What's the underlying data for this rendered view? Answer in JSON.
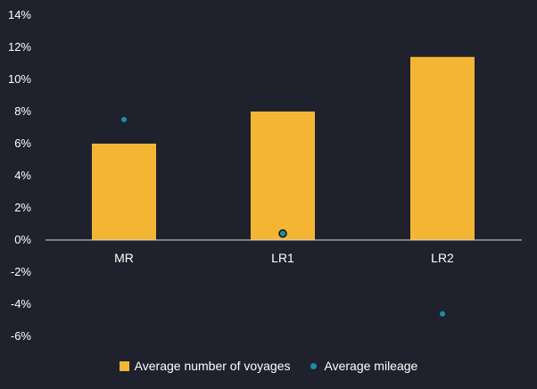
{
  "chart_data": {
    "type": "bar",
    "categories": [
      "MR",
      "LR1",
      "LR2"
    ],
    "series": [
      {
        "name": "Average number of voyages",
        "kind": "bar",
        "color": "#f4b535",
        "values": [
          6.0,
          8.0,
          11.4
        ]
      },
      {
        "name": "Average mileage",
        "kind": "scatter",
        "color": "#1a8fa6",
        "values": [
          7.5,
          0.4,
          -4.6
        ]
      }
    ],
    "y_ticks": [
      "14%",
      "12%",
      "10%",
      "8%",
      "6%",
      "4%",
      "2%",
      "0%",
      "-2%",
      "-4%",
      "-6%"
    ],
    "ylim": [
      -6,
      14
    ],
    "grid": false,
    "legend_position": "bottom"
  }
}
